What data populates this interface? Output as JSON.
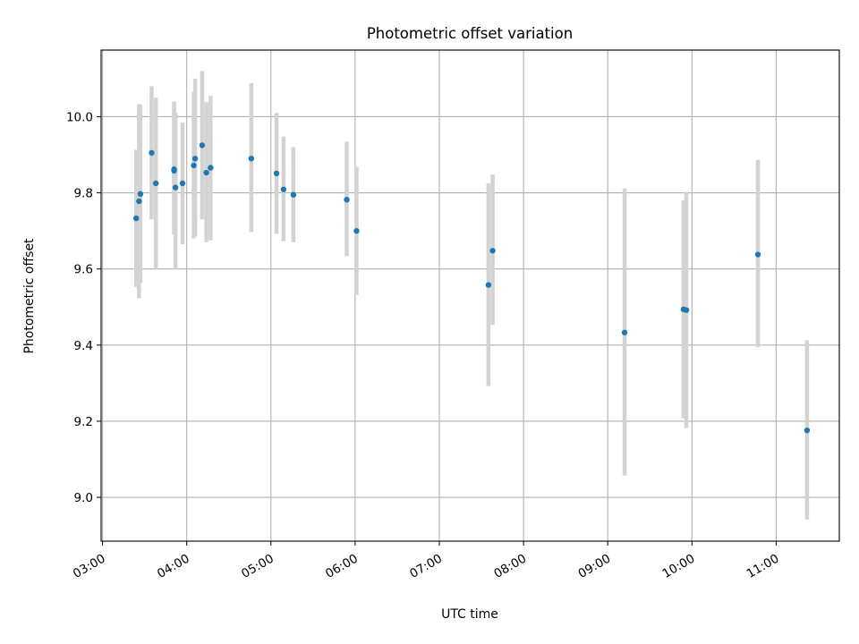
{
  "chart_data": {
    "type": "scatter",
    "title": "Photometric offset variation",
    "xlabel": "UTC time",
    "ylabel": "Photometric offset",
    "x_axis": {
      "kind": "time",
      "min": "02:59",
      "max": "11:45"
    },
    "xlim": [
      "02:59",
      "11:45"
    ],
    "ylim": [
      8.885,
      10.175
    ],
    "x_ticks": [
      "03:00",
      "04:00",
      "05:00",
      "06:00",
      "07:00",
      "08:00",
      "09:00",
      "10:00",
      "11:00"
    ],
    "y_ticks": [
      "9.0",
      "9.2",
      "9.4",
      "9.6",
      "9.8",
      "10.0"
    ],
    "grid": true,
    "legend": "none",
    "colors": {
      "point": "#1f77b4",
      "errorbar": "#d3d3d3",
      "grid": "#b0b0b0"
    },
    "points": [
      {
        "x": "03:24",
        "y": 9.733,
        "low": 9.553,
        "high": 9.913
      },
      {
        "x": "03:26",
        "y": 9.778,
        "low": 9.523,
        "high": 10.033
      },
      {
        "x": "03:27",
        "y": 9.797,
        "low": 9.563,
        "high": 10.031
      },
      {
        "x": "03:35",
        "y": 9.905,
        "low": 9.73,
        "high": 10.08
      },
      {
        "x": "03:38",
        "y": 9.825,
        "low": 9.6,
        "high": 10.05
      },
      {
        "x": "03:51",
        "y": 9.862,
        "low": 9.708,
        "high": 10.04
      },
      {
        "x": "03:51",
        "y": 9.858,
        "low": 9.69,
        "high": 10.03
      },
      {
        "x": "03:52",
        "y": 9.814,
        "low": 9.6,
        "high": 10.01
      },
      {
        "x": "03:57",
        "y": 9.825,
        "low": 9.665,
        "high": 9.985
      },
      {
        "x": "04:05",
        "y": 9.872,
        "low": 9.68,
        "high": 10.065
      },
      {
        "x": "04:06",
        "y": 9.89,
        "low": 9.685,
        "high": 10.1
      },
      {
        "x": "04:11",
        "y": 9.925,
        "low": 9.73,
        "high": 10.12
      },
      {
        "x": "04:14",
        "y": 9.853,
        "low": 9.67,
        "high": 10.038
      },
      {
        "x": "04:17",
        "y": 9.866,
        "low": 9.675,
        "high": 10.055
      },
      {
        "x": "04:46",
        "y": 9.89,
        "low": 9.697,
        "high": 10.088
      },
      {
        "x": "05:04",
        "y": 9.851,
        "low": 9.692,
        "high": 10.01
      },
      {
        "x": "05:09",
        "y": 9.809,
        "low": 9.673,
        "high": 9.948
      },
      {
        "x": "05:16",
        "y": 9.795,
        "low": 9.67,
        "high": 9.92
      },
      {
        "x": "05:54",
        "y": 9.782,
        "low": 9.634,
        "high": 9.935
      },
      {
        "x": "06:01",
        "y": 9.7,
        "low": 9.532,
        "high": 9.868
      },
      {
        "x": "07:35",
        "y": 9.558,
        "low": 9.292,
        "high": 9.825
      },
      {
        "x": "07:38",
        "y": 9.648,
        "low": 9.453,
        "high": 9.848
      },
      {
        "x": "09:12",
        "y": 9.433,
        "low": 9.057,
        "high": 9.812
      },
      {
        "x": "09:54",
        "y": 9.494,
        "low": 9.208,
        "high": 9.78
      },
      {
        "x": "09:56",
        "y": 9.492,
        "low": 9.182,
        "high": 9.803
      },
      {
        "x": "10:47",
        "y": 9.638,
        "low": 9.395,
        "high": 9.887
      },
      {
        "x": "11:22",
        "y": 9.176,
        "low": 8.942,
        "high": 9.413
      }
    ]
  }
}
